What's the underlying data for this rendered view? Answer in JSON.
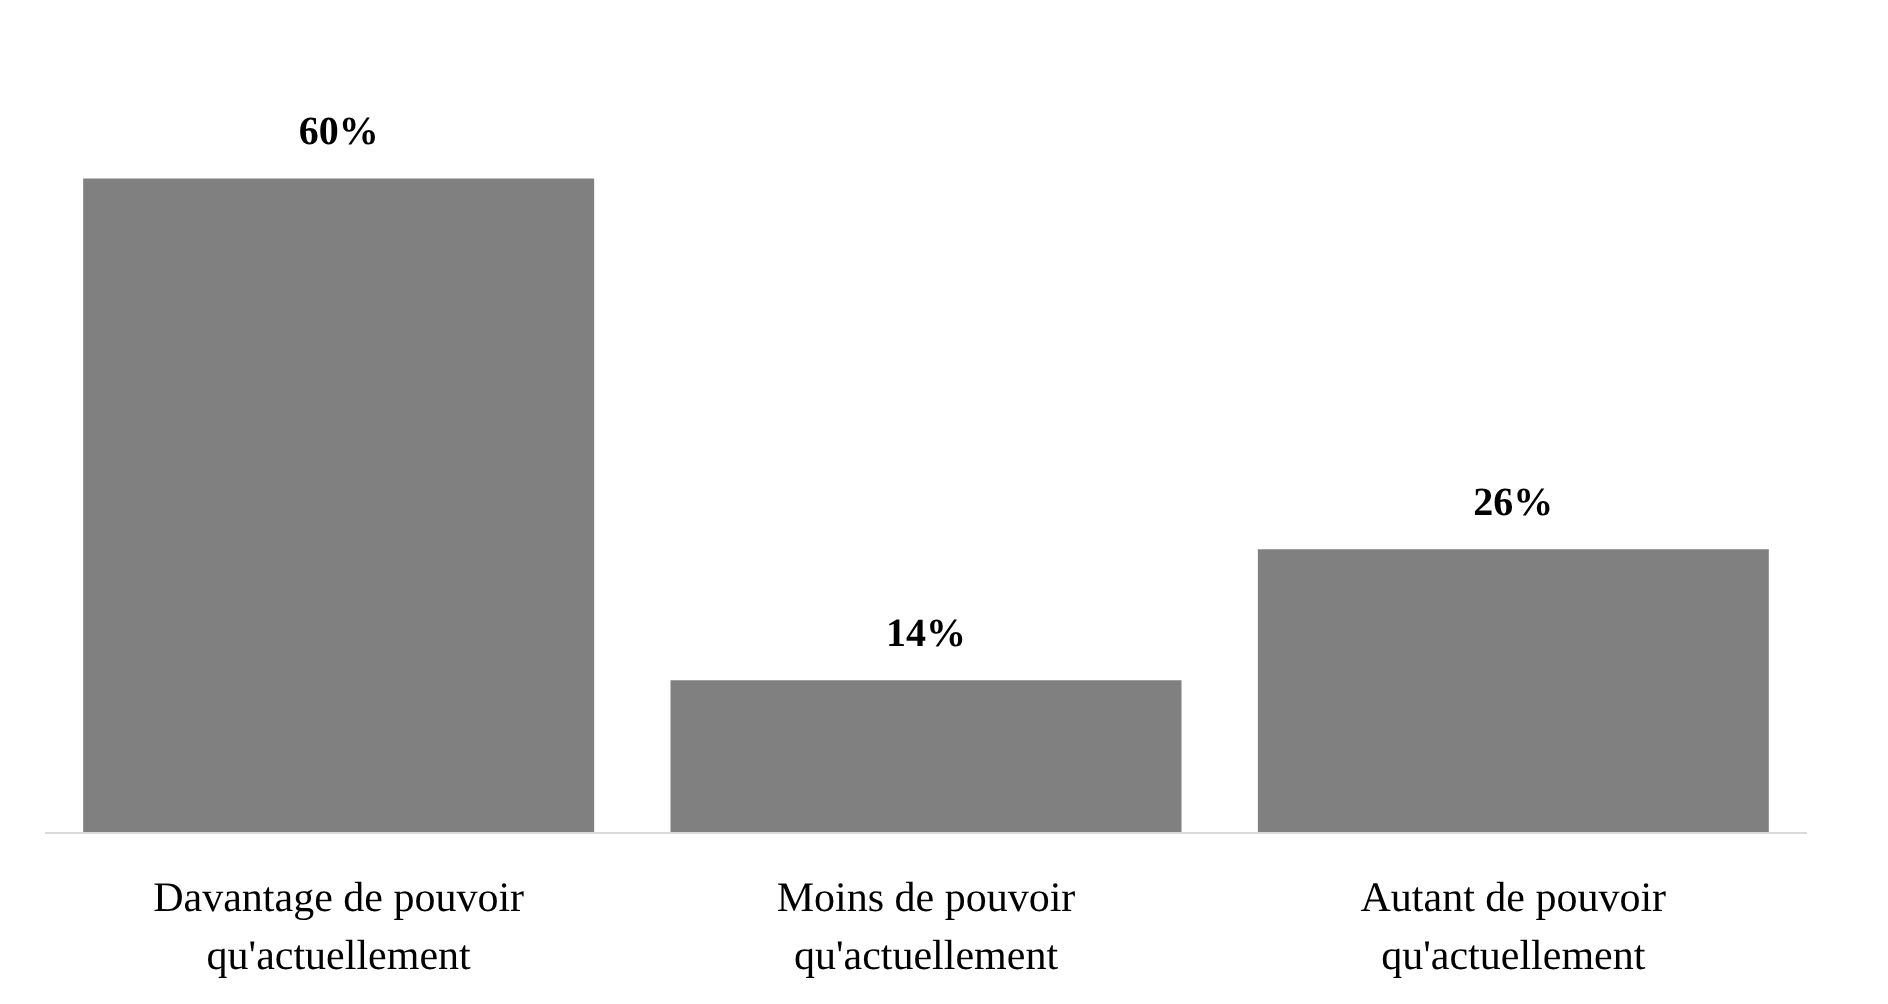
{
  "chart_data": {
    "type": "bar",
    "categories": [
      "Davantage de pouvoir qu'actuellement",
      "Moins de pouvoir qu'actuellement",
      "Autant de pouvoir qu'actuellement"
    ],
    "values": [
      60,
      14,
      26
    ],
    "value_labels": [
      "60%",
      "14%",
      "26%"
    ],
    "color": "#808080",
    "tick_labels": "x",
    "grid": false
  }
}
